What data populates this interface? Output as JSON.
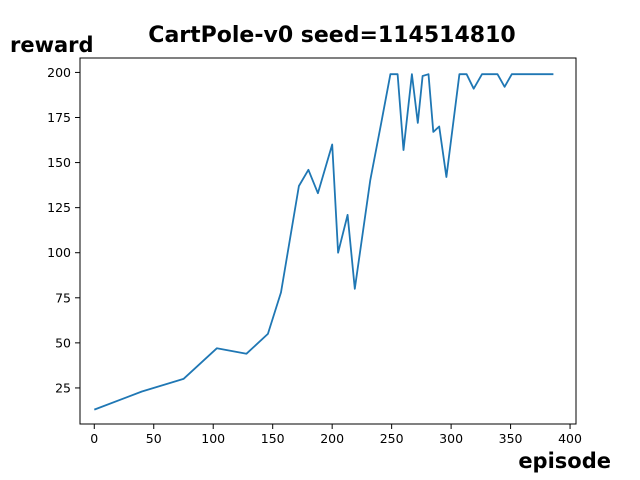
{
  "chart_data": {
    "type": "line",
    "title": "CartPole-v0 seed=114514810",
    "xlabel": "episode",
    "ylabel": "reward",
    "xlim": [
      -12,
      405
    ],
    "ylim": [
      5,
      208
    ],
    "xticks": [
      0,
      50,
      100,
      150,
      200,
      250,
      300,
      350,
      400
    ],
    "yticks": [
      25,
      50,
      75,
      100,
      125,
      150,
      175,
      200
    ],
    "grid": false,
    "line_color": "#1f77b4",
    "series": [
      {
        "x": [
          0,
          40,
          75,
          103,
          128,
          146,
          157,
          172,
          180,
          188,
          200,
          205,
          213,
          219,
          232,
          241,
          249,
          255,
          260,
          267,
          272,
          276,
          281,
          285,
          290,
          296,
          307,
          313,
          319,
          326,
          332,
          339,
          345,
          351,
          386
        ],
        "values": [
          13,
          23,
          30,
          47,
          44,
          55,
          78,
          137,
          146,
          133,
          160,
          100,
          121,
          80,
          140,
          171,
          199,
          199,
          157,
          199,
          172,
          198,
          199,
          167,
          170,
          142,
          199,
          199,
          191,
          199,
          199,
          199,
          192,
          199,
          199
        ]
      }
    ]
  }
}
